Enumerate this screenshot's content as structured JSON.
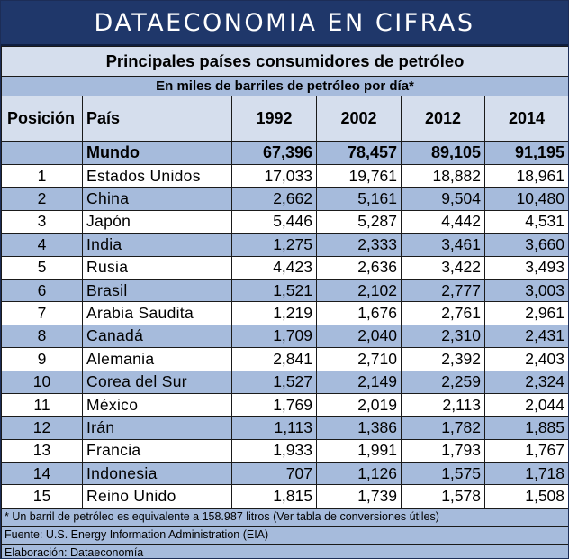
{
  "banner": {
    "title": "DATAECONOMIA EN CIFRAS"
  },
  "table": {
    "title": "Principales países consumidores de petróleo",
    "unit": "En miles de barriles de petróleo por día*",
    "headers": {
      "position": "Posición",
      "country": "País",
      "years": [
        "1992",
        "2002",
        "2012",
        "2014"
      ]
    },
    "total": {
      "label": "Mundo",
      "values": [
        "67,396",
        "78,457",
        "89,105",
        "91,195"
      ]
    },
    "rows": [
      {
        "pos": "1",
        "country": "Estados Unidos",
        "values": [
          "17,033",
          "19,761",
          "18,882",
          "18,961"
        ]
      },
      {
        "pos": "2",
        "country": "China",
        "values": [
          "2,662",
          "5,161",
          "9,504",
          "10,480"
        ]
      },
      {
        "pos": "3",
        "country": "Japón",
        "values": [
          "5,446",
          "5,287",
          "4,442",
          "4,531"
        ]
      },
      {
        "pos": "4",
        "country": "India",
        "values": [
          "1,275",
          "2,333",
          "3,461",
          "3,660"
        ]
      },
      {
        "pos": "5",
        "country": "Rusia",
        "values": [
          "4,423",
          "2,636",
          "3,422",
          "3,493"
        ]
      },
      {
        "pos": "6",
        "country": "Brasil",
        "values": [
          "1,521",
          "2,102",
          "2,777",
          "3,003"
        ]
      },
      {
        "pos": "7",
        "country": "Arabia Saudita",
        "values": [
          "1,219",
          "1,676",
          "2,761",
          "2,961"
        ]
      },
      {
        "pos": "8",
        "country": "Canadá",
        "values": [
          "1,709",
          "2,040",
          "2,310",
          "2,431"
        ]
      },
      {
        "pos": "9",
        "country": "Alemania",
        "values": [
          "2,841",
          "2,710",
          "2,392",
          "2,403"
        ]
      },
      {
        "pos": "10",
        "country": "Corea del Sur",
        "values": [
          "1,527",
          "2,149",
          "2,259",
          "2,324"
        ]
      },
      {
        "pos": "11",
        "country": "México",
        "values": [
          "1,769",
          "2,019",
          "2,113",
          "2,044"
        ]
      },
      {
        "pos": "12",
        "country": "Irán",
        "values": [
          "1,113",
          "1,386",
          "1,782",
          "1,885"
        ]
      },
      {
        "pos": "13",
        "country": "Francia",
        "values": [
          "1,933",
          "1,991",
          "1,793",
          "1,767"
        ]
      },
      {
        "pos": "14",
        "country": "Indonesia",
        "values": [
          "707",
          "1,126",
          "1,575",
          "1,718"
        ]
      },
      {
        "pos": "15",
        "country": "Reino Unido",
        "values": [
          "1,815",
          "1,739",
          "1,578",
          "1,508"
        ]
      }
    ],
    "notes": [
      "* Un barril de petróleo es equivalente a 158.987 litros (Ver tabla de conversiones útiles)",
      "Fuente: U.S. Energy Information Administration (EIA)",
      "Elaboración: Dataeconomía"
    ]
  },
  "colors": {
    "banner": "#1f376a",
    "header_light": "#d5deed",
    "band": "#a6bbdc"
  },
  "chart_data": {
    "type": "table",
    "title": "Principales países consumidores de petróleo",
    "subtitle": "En miles de barriles de petróleo por día*",
    "columns": [
      "Posición",
      "País",
      "1992",
      "2002",
      "2012",
      "2014"
    ],
    "categories": [
      "Mundo",
      "Estados Unidos",
      "China",
      "Japón",
      "India",
      "Rusia",
      "Brasil",
      "Arabia Saudita",
      "Canadá",
      "Alemania",
      "Corea del Sur",
      "México",
      "Irán",
      "Francia",
      "Indonesia",
      "Reino Unido"
    ],
    "series": [
      {
        "name": "1992",
        "values": [
          67396,
          17033,
          2662,
          5446,
          1275,
          4423,
          1521,
          1219,
          1709,
          2841,
          1527,
          1769,
          1113,
          1933,
          707,
          1815
        ]
      },
      {
        "name": "2002",
        "values": [
          78457,
          19761,
          5161,
          5287,
          2333,
          2636,
          2102,
          1676,
          2040,
          2710,
          2149,
          2019,
          1386,
          1991,
          1126,
          1739
        ]
      },
      {
        "name": "2012",
        "values": [
          89105,
          18882,
          9504,
          4442,
          3461,
          3422,
          2777,
          2761,
          2310,
          2392,
          2259,
          2113,
          1782,
          1793,
          1575,
          1578
        ]
      },
      {
        "name": "2014",
        "values": [
          91195,
          18961,
          10480,
          4531,
          3660,
          3493,
          3003,
          2961,
          2431,
          2403,
          2324,
          2044,
          1885,
          1767,
          1718,
          1508
        ]
      }
    ]
  }
}
